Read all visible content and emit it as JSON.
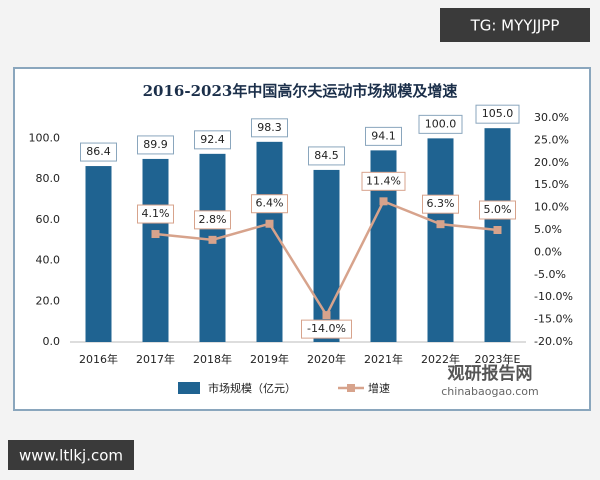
{
  "watermarks": {
    "top": "TG: MYYJJPP",
    "bottom": "www.ltlkj.com",
    "logo": "观研报告网",
    "logo_url": "chinabaogao.com"
  },
  "chart_data": {
    "type": "bar-line",
    "title": "2016-2023年中国高尔夫运动市场规模及增速",
    "categories": [
      "2016年",
      "2017年",
      "2018年",
      "2019年",
      "2020年",
      "2021年",
      "2022年",
      "2023年E"
    ],
    "series": [
      {
        "name": "市场规模（亿元）",
        "type": "bar",
        "color": "#1f6391",
        "values": [
          86.4,
          89.9,
          92.4,
          98.3,
          84.5,
          94.1,
          100.0,
          105.0
        ],
        "value_labels": [
          "86.4",
          "89.9",
          "92.4",
          "98.3",
          "84.5",
          "94.1",
          "100.0",
          "105.0"
        ]
      },
      {
        "name": "增速",
        "type": "line",
        "axis": "y2",
        "color": "#d7a38c",
        "values": [
          null,
          4.1,
          2.8,
          6.4,
          -14.0,
          11.4,
          6.3,
          5.0
        ],
        "value_labels": [
          null,
          "4.1%",
          "2.8%",
          "6.4%",
          "-14.0%",
          "11.4%",
          "6.3%",
          "5.0%"
        ]
      }
    ],
    "ylim": [
      0,
      110
    ],
    "yticks": [
      {
        "value": 0,
        "label": "0.0"
      },
      {
        "value": 20,
        "label": "20.0"
      },
      {
        "value": 40,
        "label": "40.0"
      },
      {
        "value": 60,
        "label": "60.0"
      },
      {
        "value": 80,
        "label": "80.0"
      },
      {
        "value": 100,
        "label": "100.0"
      }
    ],
    "y2lim": [
      -20,
      30
    ],
    "y2ticks": [
      {
        "value": -20,
        "label": "-20.0%"
      },
      {
        "value": -15,
        "label": "-15.0%"
      },
      {
        "value": -10,
        "label": "-10.0%"
      },
      {
        "value": -5,
        "label": "-5.0%"
      },
      {
        "value": 0,
        "label": "0.0%"
      },
      {
        "value": 5,
        "label": "5.0%"
      },
      {
        "value": 10,
        "label": "10.0%"
      },
      {
        "value": 15,
        "label": "15.0%"
      },
      {
        "value": 20,
        "label": "20.0%"
      },
      {
        "value": 25,
        "label": "25.0%"
      },
      {
        "value": 30,
        "label": "30.0%"
      }
    ],
    "grid": false,
    "legend": "bottom"
  }
}
